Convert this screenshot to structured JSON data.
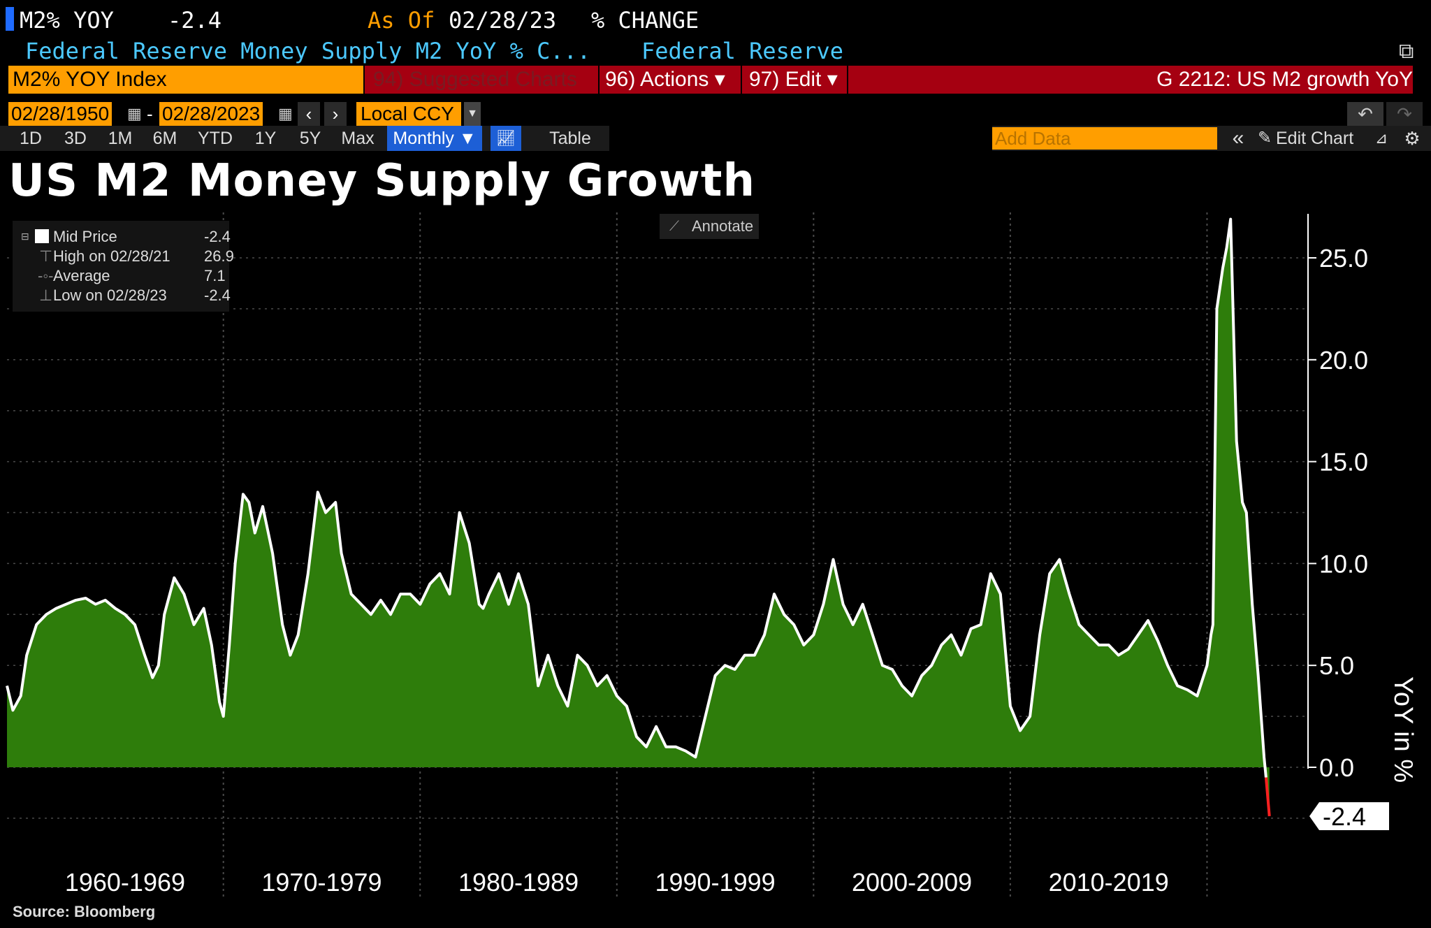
{
  "header": {
    "ticker": "M2% YOY",
    "last_value": "-2.4",
    "as_of_label": "As Of",
    "as_of_date": "02/28/23",
    "change_label": "% CHANGE",
    "description": "Federal Reserve Money Supply M2 YoY % C...",
    "source_name": "Federal Reserve"
  },
  "toolbar": {
    "security": "M2% YOY Index",
    "suggested": "94) Suggested Charts",
    "actions": "96) Actions ▾",
    "edit": "97) Edit ▾",
    "chart_id": "G 2212: US M2 growth YoY",
    "start_date": "02/28/1950",
    "end_date": "02/28/2023",
    "date_sep": "-",
    "currency": "Local CCY",
    "add_data_placeholder": "Add Data",
    "edit_chart": "Edit Chart",
    "table": "Table",
    "periods": [
      "1D",
      "3D",
      "1M",
      "6M",
      "YTD",
      "1Y",
      "5Y",
      "Max"
    ],
    "frequency": "Monthly ▼"
  },
  "annotate_label": "Annotate",
  "legend": {
    "rows": [
      {
        "label": "Mid Price",
        "value": "-2.4"
      },
      {
        "label": "High on 02/28/21",
        "value": "26.9"
      },
      {
        "label": "Average",
        "value": "7.1"
      },
      {
        "label": "Low on 02/28/23",
        "value": "-2.4"
      }
    ]
  },
  "footer": {
    "source": "Source: Bloomberg"
  },
  "colors": {
    "fill": "#2e7d0b",
    "line": "#ffffff",
    "accent_orange": "#ff9e00",
    "accent_red": "#a50011",
    "last_segment": "#ff2020"
  },
  "chart_data": {
    "type": "area",
    "title": "US M2 Money Supply Growth",
    "ylabel": "YoY in %",
    "ylim": [
      -3.5,
      27.5
    ],
    "xlim": [
      1959.0,
      2023.5
    ],
    "y_ticks": [
      "25.0",
      "20.0",
      "15.0",
      "10.0",
      "5.0",
      "0.0"
    ],
    "y_tick_values": [
      25,
      20,
      15,
      10,
      5,
      0
    ],
    "x_labels": [
      "1960-1969",
      "1970-1979",
      "1980-1989",
      "1990-1999",
      "2000-2009",
      "2010-2019"
    ],
    "decade_dividers": [
      1970,
      1980,
      1990,
      2000,
      2010,
      2020
    ],
    "last_value_label": "-2.4",
    "grid": true,
    "series": [
      {
        "x": [
          1959.0,
          1959.3,
          1959.7,
          1960.0,
          1960.5,
          1961.0,
          1961.5,
          1962.0,
          1962.5,
          1963.0,
          1963.5,
          1964.0,
          1964.5,
          1965.0,
          1965.5,
          1966.0,
          1966.4,
          1966.7,
          1967.0,
          1967.5,
          1968.0,
          1968.5,
          1969.0,
          1969.4,
          1969.8,
          1970.0,
          1970.3,
          1970.6,
          1971.0,
          1971.3,
          1971.6,
          1972.0,
          1972.5,
          1973.0,
          1973.4,
          1973.8,
          1974.3,
          1974.8,
          1975.2,
          1975.7,
          1976.0,
          1976.5,
          1977.0,
          1977.5,
          1978.0,
          1978.5,
          1979.0,
          1979.5,
          1980.0,
          1980.5,
          1981.0,
          1981.5,
          1982.0,
          1982.5,
          1983.0,
          1983.2,
          1983.5,
          1984.0,
          1984.5,
          1985.0,
          1985.5,
          1986.0,
          1986.5,
          1987.0,
          1987.5,
          1988.0,
          1988.5,
          1989.0,
          1989.5,
          1990.0,
          1990.5,
          1991.0,
          1991.5,
          1992.0,
          1992.5,
          1993.0,
          1993.5,
          1994.0,
          1994.5,
          1995.0,
          1995.5,
          1996.0,
          1996.5,
          1997.0,
          1997.5,
          1998.0,
          1998.5,
          1999.0,
          1999.5,
          2000.0,
          2000.5,
          2001.0,
          2001.5,
          2002.0,
          2002.5,
          2003.0,
          2003.5,
          2004.0,
          2004.5,
          2005.0,
          2005.5,
          2006.0,
          2006.5,
          2007.0,
          2007.5,
          2008.0,
          2008.5,
          2009.0,
          2009.5,
          2010.0,
          2010.5,
          2011.0,
          2011.5,
          2012.0,
          2012.5,
          2013.0,
          2013.5,
          2014.0,
          2014.5,
          2015.0,
          2015.5,
          2016.0,
          2016.5,
          2017.0,
          2017.5,
          2018.0,
          2018.5,
          2019.0,
          2019.5,
          2020.0,
          2020.2,
          2020.3,
          2020.5,
          2020.8,
          2021.0,
          2021.2,
          2021.5,
          2021.8,
          2022.0,
          2022.3,
          2022.6,
          2022.9,
          2023.0,
          2023.17
        ],
        "values": [
          4.0,
          2.8,
          3.5,
          5.5,
          7.0,
          7.5,
          7.8,
          8.0,
          8.2,
          8.3,
          8.0,
          8.2,
          7.8,
          7.5,
          7.0,
          5.5,
          4.4,
          5.0,
          7.5,
          9.3,
          8.5,
          7.0,
          7.8,
          6.0,
          3.2,
          2.5,
          6.0,
          10.0,
          13.4,
          13.0,
          11.5,
          12.8,
          10.5,
          7.0,
          5.5,
          6.5,
          9.5,
          13.5,
          12.5,
          13.0,
          10.5,
          8.5,
          8.0,
          7.5,
          8.2,
          7.5,
          8.5,
          8.5,
          8.0,
          9.0,
          9.5,
          8.5,
          12.5,
          11.0,
          8.0,
          7.8,
          8.5,
          9.5,
          8.0,
          9.5,
          8.0,
          4.0,
          5.5,
          4.0,
          3.0,
          5.5,
          5.0,
          4.0,
          4.5,
          3.5,
          3.0,
          1.5,
          1.0,
          2.0,
          1.0,
          1.0,
          0.8,
          0.5,
          2.5,
          4.5,
          5.0,
          4.8,
          5.5,
          5.5,
          6.5,
          8.5,
          7.5,
          7.0,
          6.0,
          6.5,
          8.0,
          10.2,
          8.0,
          7.0,
          8.0,
          6.5,
          5.0,
          4.8,
          4.0,
          3.5,
          4.5,
          5.0,
          6.0,
          6.5,
          5.5,
          6.8,
          7.0,
          9.5,
          8.5,
          3.0,
          1.8,
          2.5,
          6.5,
          9.5,
          10.2,
          8.5,
          7.0,
          6.5,
          6.0,
          6.0,
          5.5,
          5.8,
          6.5,
          7.2,
          6.2,
          5.0,
          4.0,
          3.8,
          3.5,
          5.0,
          6.5,
          7.0,
          22.5,
          24.5,
          25.5,
          26.9,
          16.0,
          13.0,
          12.5,
          8.0,
          4.5,
          0.5,
          -0.5,
          -2.4
        ]
      }
    ]
  }
}
